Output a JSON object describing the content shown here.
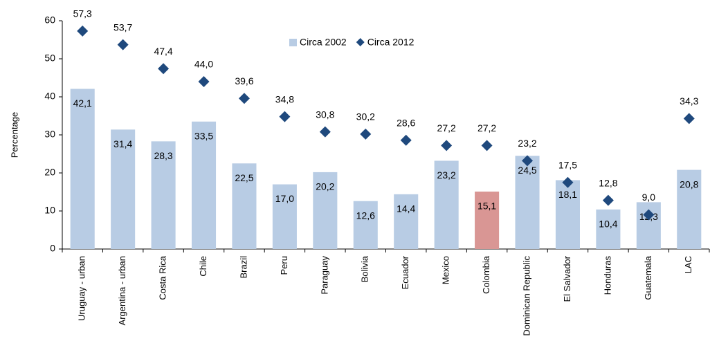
{
  "chart_data": {
    "type": "bar",
    "y_label": "Percentage",
    "categories": [
      "Uruguay - urban",
      "Argentina - urban",
      "Costa Rica",
      "Chile",
      "Brazil",
      "Peru",
      "Paraguay",
      "Bolivia",
      "Ecuador",
      "Mexico",
      "Colombia",
      "Dominican Republic",
      "El Salvador",
      "Honduras",
      "Guatemala",
      "LAC"
    ],
    "series": [
      {
        "name": "Circa 2002",
        "type": "bar",
        "color": "#b8cce4",
        "colors": [
          "#b8cce4",
          "#b8cce4",
          "#b8cce4",
          "#b8cce4",
          "#b8cce4",
          "#b8cce4",
          "#b8cce4",
          "#b8cce4",
          "#b8cce4",
          "#b8cce4",
          "#d99694",
          "#b8cce4",
          "#b8cce4",
          "#b8cce4",
          "#b8cce4",
          "#b8cce4"
        ],
        "values": [
          42.1,
          31.4,
          28.3,
          33.5,
          22.5,
          17.0,
          20.2,
          12.6,
          14.4,
          23.2,
          15.1,
          24.5,
          18.1,
          10.4,
          12.3,
          20.8
        ],
        "value_labels": [
          "42,1",
          "31,4",
          "28,3",
          "33,5",
          "22,5",
          "17,0",
          "20,2",
          "12,6",
          "14,4",
          "23,2",
          "15,1",
          "24,5",
          "18,1",
          "10,4",
          "12,3",
          "20,8"
        ]
      },
      {
        "name": "Circa 2012",
        "type": "scatter",
        "color": "#1f497d",
        "values": [
          57.3,
          53.7,
          47.4,
          44.0,
          39.6,
          34.8,
          30.8,
          30.2,
          28.6,
          27.2,
          27.2,
          23.2,
          17.5,
          12.8,
          9.0,
          34.3
        ],
        "value_labels": [
          "57,3",
          "53,7",
          "47,4",
          "44,0",
          "39,6",
          "34,8",
          "30,8",
          "30,2",
          "28,6",
          "27,2",
          "27,2",
          "23,2",
          "17,5",
          "12,8",
          "9,0",
          "34,3"
        ]
      }
    ],
    "ylim": [
      0,
      60
    ],
    "yticks": [
      0,
      10,
      20,
      30,
      40,
      50,
      60
    ]
  }
}
